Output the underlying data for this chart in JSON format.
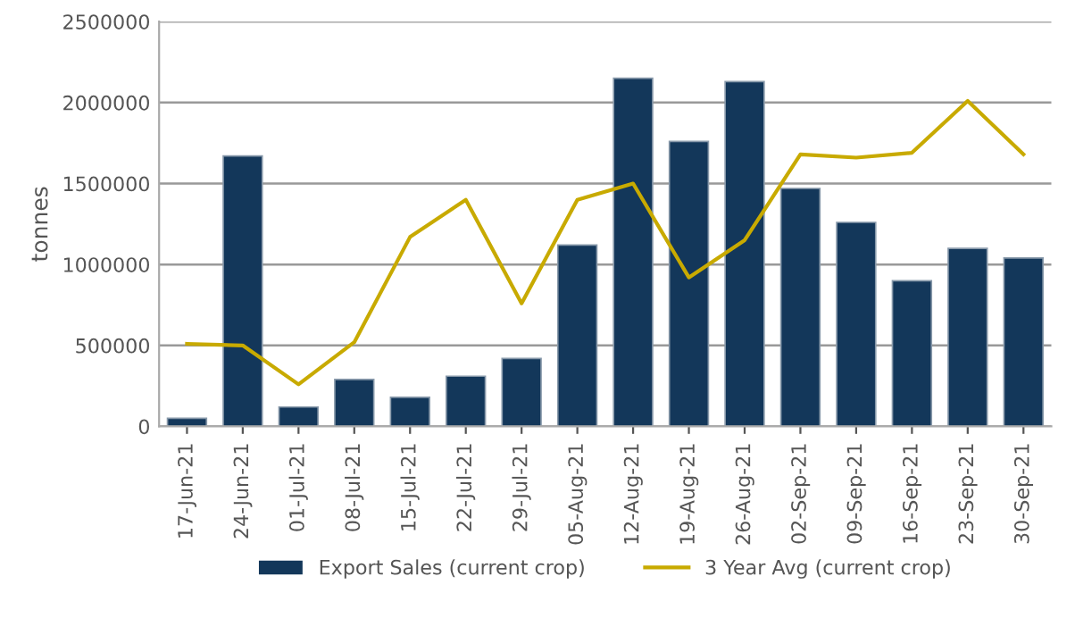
{
  "chart_data": {
    "type": "bar",
    "ylabel": "tonnes",
    "categories": [
      "17-Jun-21",
      "24-Jun-21",
      "01-Jul-21",
      "08-Jul-21",
      "15-Jul-21",
      "22-Jul-21",
      "29-Jul-21",
      "05-Aug-21",
      "12-Aug-21",
      "19-Aug-21",
      "26-Aug-21",
      "02-Sep-21",
      "09-Sep-21",
      "16-Sep-21",
      "23-Sep-21",
      "30-Sep-21"
    ],
    "series": [
      {
        "name": "Export Sales (current crop)",
        "color": "#13375a",
        "values": [
          50000,
          1670000,
          120000,
          290000,
          180000,
          310000,
          420000,
          1120000,
          2150000,
          1760000,
          2130000,
          1470000,
          1260000,
          900000,
          1100000,
          1040000
        ]
      },
      {
        "name": "3 Year Avg (current crop)",
        "type": "line",
        "color": "#c8aa00",
        "values": [
          510000,
          500000,
          260000,
          520000,
          1170000,
          1400000,
          760000,
          1400000,
          1500000,
          920000,
          1150000,
          1680000,
          1660000,
          1690000,
          2010000,
          1680000
        ]
      }
    ],
    "ylim": [
      0,
      2500000
    ],
    "yticks": [
      0,
      500000,
      1000000,
      1500000,
      2000000,
      2500000
    ],
    "grid": "y",
    "legend": "bottom",
    "marker": "none",
    "line_style": "solid"
  }
}
